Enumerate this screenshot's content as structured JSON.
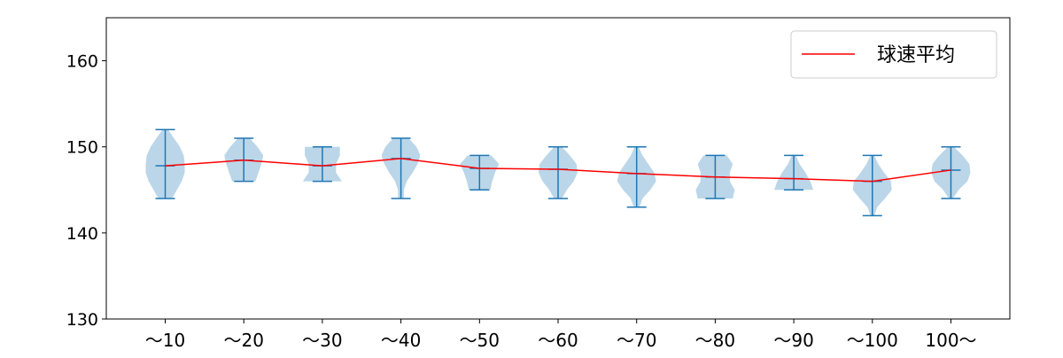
{
  "chart_data": {
    "type": "violin",
    "title": "",
    "xlabel": "",
    "ylabel": "",
    "categories": [
      "～10",
      "～20",
      "～30",
      "～40",
      "～50",
      "～60",
      "～70",
      "～80",
      "～90",
      "～100",
      "100～"
    ],
    "ylim": [
      130,
      165
    ],
    "yticks": [
      130,
      140,
      150,
      160
    ],
    "grid": false,
    "legend": {
      "entries": [
        "球速平均"
      ],
      "placement": "top-right"
    },
    "colors": {
      "violin": "#1f77b4",
      "mean_line": "#ff0000"
    },
    "violins": [
      {
        "min": 144,
        "max": 152,
        "mean": 147.8,
        "density": [
          0.35,
          0.6,
          0.85,
          1,
          1,
          0.95,
          0.75,
          0.45,
          0.15
        ]
      },
      {
        "min": 146,
        "max": 151,
        "mean": 148.45,
        "density": [
          0.6,
          0.75,
          0.9,
          1,
          0.7,
          0.3
        ]
      },
      {
        "min": 146,
        "max": 150,
        "mean": 147.8,
        "density": [
          1,
          0.7,
          0.7,
          0.9,
          0.9
        ]
      },
      {
        "min": 144,
        "max": 151,
        "mean": 148.65,
        "density": [
          0.15,
          0.15,
          0.3,
          0.6,
          0.85,
          1,
          0.8,
          0.4
        ]
      },
      {
        "min": 145,
        "max": 149,
        "mean": 147.5,
        "density": [
          0.55,
          0.65,
          0.8,
          1,
          0.6
        ]
      },
      {
        "min": 144,
        "max": 150,
        "mean": 147.4,
        "density": [
          0.2,
          0.45,
          0.8,
          1,
          0.95,
          0.6,
          0.2
        ]
      },
      {
        "min": 143,
        "max": 150,
        "mean": 146.9,
        "density": [
          0.15,
          0.3,
          0.7,
          1,
          0.9,
          0.6,
          0.3,
          0.1
        ]
      },
      {
        "min": 144,
        "max": 149,
        "mean": 146.5,
        "density": [
          0.9,
          1,
          0.75,
          0.75,
          0.9,
          0.6
        ]
      },
      {
        "min": 145,
        "max": 149,
        "mean": 146.3,
        "density": [
          1,
          0.85,
          0.6,
          0.3,
          0.1
        ]
      },
      {
        "min": 142,
        "max": 149,
        "mean": 146.0,
        "density": [
          0.1,
          0.25,
          0.65,
          1,
          0.95,
          0.6,
          0.3,
          0.1
        ]
      },
      {
        "min": 144,
        "max": 150,
        "mean": 147.3,
        "density": [
          0.1,
          0.4,
          0.85,
          1,
          0.95,
          0.6,
          0.15
        ]
      }
    ]
  }
}
